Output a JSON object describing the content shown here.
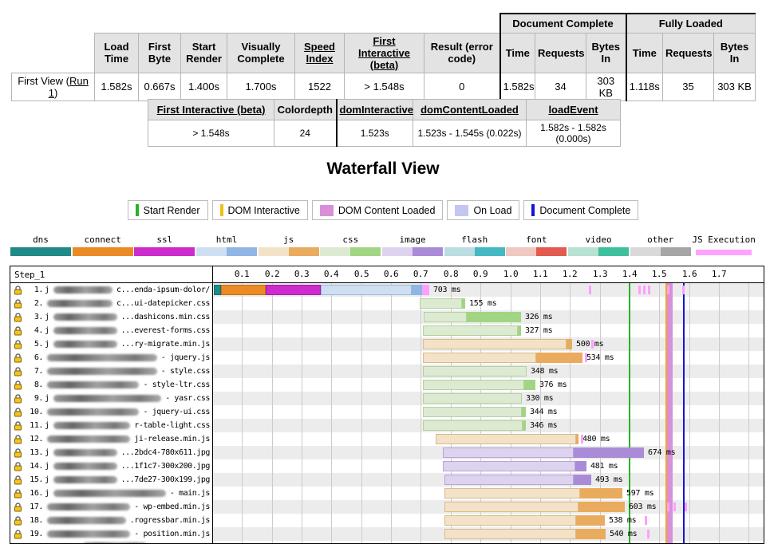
{
  "summary_table": {
    "row_label": {
      "prefix": "First View (",
      "link": "Run 1",
      "suffix": ")"
    },
    "col_headers": [
      "Load Time",
      "First Byte",
      "Start Render",
      "Visually Complete",
      "Speed Index",
      "First Interactive (beta)",
      "Result (error code)"
    ],
    "group_headers": [
      "Document Complete",
      "Fully Loaded"
    ],
    "sub_headers": [
      "Time",
      "Requests",
      "Bytes In",
      "Time",
      "Requests",
      "Bytes In"
    ],
    "values": [
      "1.582s",
      "0.667s",
      "1.400s",
      "1.700s",
      "1522",
      "> 1.548s",
      "0",
      "1.582s",
      "34",
      "303 KB",
      "1.118s",
      "35",
      "303 KB"
    ]
  },
  "detail_table": {
    "headers": [
      "First Interactive (beta)",
      "Colordepth",
      "domInteractive",
      "domContentLoaded",
      "loadEvent"
    ],
    "values": [
      "> 1.548s",
      "24",
      "1.523s",
      "1.523s - 1.545s (0.022s)",
      "1.582s - 1.582s (0.000s)"
    ]
  },
  "waterfall_title": "Waterfall View",
  "event_legend": [
    {
      "label": "Start Render",
      "marker": "line",
      "color": "#28b228"
    },
    {
      "label": "DOM Interactive",
      "marker": "line",
      "color": "#f0c019"
    },
    {
      "label": "DOM Content Loaded",
      "marker": "band",
      "color": "#d88fd8"
    },
    {
      "label": "On Load",
      "marker": "band",
      "color": "#c4c6f1"
    },
    {
      "label": "Document Complete",
      "marker": "line",
      "color": "#1515d6"
    }
  ],
  "phase_legend": [
    {
      "label": "dns",
      "light": "#1f8a88",
      "dark": "#14706e",
      "solid": true
    },
    {
      "label": "connect",
      "light": "#ea8b26",
      "dark": "#c96f10",
      "solid": true
    },
    {
      "label": "ssl",
      "light": "#cd2ccd",
      "dark": "#a91ba9",
      "solid": true
    },
    {
      "label": "html",
      "light": "#cfdff2",
      "dark": "#8fb6e4"
    },
    {
      "label": "js",
      "light": "#f3e2c7",
      "dark": "#e9ab5d"
    },
    {
      "label": "css",
      "light": "#dcead2",
      "dark": "#a2d583"
    },
    {
      "label": "image",
      "light": "#ded3ee",
      "dark": "#a98bd8"
    },
    {
      "label": "flash",
      "light": "#b9dde0",
      "dark": "#44b9c4"
    },
    {
      "label": "font",
      "light": "#f1c7c1",
      "dark": "#e25b4e"
    },
    {
      "label": "video",
      "light": "#b7e1d3",
      "dark": "#3fc09c"
    },
    {
      "label": "other",
      "light": "#d9d9d9",
      "dark": "#a6a6a6"
    },
    {
      "label": "JS Execution",
      "light": "#ffa2ff",
      "dark": "#ffa2ff",
      "solid": true,
      "thin": true
    }
  ],
  "waterfall": {
    "step_label": "Step_1",
    "axis": {
      "tick_labels": [
        "0.1",
        "0.2",
        "0.3",
        "0.4",
        "0.5",
        "0.6",
        "0.7",
        "0.8",
        "0.9",
        "1.0",
        "1.1",
        "1.2",
        "1.3",
        "1.4",
        "1.5",
        "1.6",
        "1.7"
      ],
      "grid_end": 1.8,
      "t_max": 1.85
    },
    "events": {
      "start_render": {
        "t": 1.4,
        "color": "#28b228"
      },
      "dom_interactive": {
        "t": 1.523,
        "color": "#f0a822"
      },
      "dom_content_loaded": {
        "t1": 1.523,
        "t2": 1.545,
        "color": "#d88fdc"
      },
      "on_load": {
        "t1": 1.582,
        "t2": 1.582,
        "color": "#c4c6f1"
      },
      "document_complete": {
        "t": 1.582,
        "color": "#1515d6"
      }
    },
    "colors": {
      "dns": {
        "fill": "#1f8a88",
        "border": "#14706e"
      },
      "connect": {
        "fill": "#ea8b26",
        "border": "#c96f10"
      },
      "ssl": {
        "fill": "#cd2ccd",
        "border": "#a91ba9"
      },
      "html": {
        "light": "#cfdff2",
        "border": "#9ab8dc",
        "dark": "#8fb6e4"
      },
      "js": {
        "light": "#f3e2c7",
        "border": "#d8bd8a",
        "dark": "#e9ab5d"
      },
      "css": {
        "light": "#dcead2",
        "border": "#b4d19d",
        "dark": "#a2d583"
      },
      "image": {
        "light": "#ded3ee",
        "border": "#b7a3d9",
        "dark": "#a98bd8"
      },
      "exec": {
        "fill": "#ff9fff"
      }
    },
    "requests": [
      {
        "num": "1.",
        "lead": "j",
        "tail": "c...enda-ipsum-dolor/",
        "type": "html",
        "ms": "703 ms",
        "segments": [
          [
            "dns",
            0.005,
            0.03
          ],
          [
            "connect",
            0.03,
            0.18
          ],
          [
            "ssl",
            0.18,
            0.365
          ],
          [
            "html",
            0.365,
            0.668
          ],
          [
            "html_dark",
            0.668,
            0.703
          ],
          [
            "exec",
            0.703,
            0.728
          ]
        ],
        "marks": [
          1.265,
          1.43,
          1.446,
          1.462,
          1.527,
          1.578
        ]
      },
      {
        "num": "2.",
        "lead": "",
        "tail": "c...ui-datepicker.css",
        "type": "css",
        "ms": "155 ms",
        "light": [
          0.695,
          0.838
        ],
        "dark": [
          0.838,
          0.85
        ]
      },
      {
        "num": "3.",
        "lead": "j",
        "tail": "...dashicons.min.css",
        "type": "css",
        "ms": "326 ms",
        "light": [
          0.709,
          0.855
        ],
        "dark": [
          0.855,
          1.035
        ]
      },
      {
        "num": "4.",
        "lead": "j",
        "tail": "...everest-forms.css",
        "type": "css",
        "ms": "327 ms",
        "light": [
          0.708,
          1.025
        ],
        "dark": [
          1.025,
          1.035
        ]
      },
      {
        "num": "5.",
        "lead": "j",
        "tail": "...ry-migrate.min.js",
        "type": "js",
        "ms": "500 ms",
        "light": [
          0.708,
          1.19
        ],
        "dark": [
          1.19,
          1.208
        ],
        "marks": [
          1.272
        ]
      },
      {
        "num": "6.",
        "lead": "",
        "tail": "- jquery.js",
        "type": "js",
        "ms": "534 ms",
        "light": [
          0.708,
          1.087
        ],
        "dark": [
          1.087,
          1.242
        ],
        "marks": [
          1.25
        ]
      },
      {
        "num": "7.",
        "lead": "",
        "tail": "- style.css",
        "type": "css",
        "ms": "348 ms",
        "light": [
          0.708,
          1.056
        ]
      },
      {
        "num": "8.",
        "lead": "",
        "tail": "- style-ltr.css",
        "type": "css",
        "ms": "376 ms",
        "light": [
          0.708,
          1.047
        ],
        "dark": [
          1.047,
          1.084
        ]
      },
      {
        "num": "9.",
        "lead": "j",
        "tail": "- yasr.css",
        "type": "css",
        "ms": "330 ms",
        "light": [
          0.708,
          1.038
        ]
      },
      {
        "num": "10.",
        "lead": "",
        "tail": "- jquery-ui.css",
        "type": "css",
        "ms": "344 ms",
        "light": [
          0.708,
          1.04
        ],
        "dark": [
          1.04,
          1.052
        ]
      },
      {
        "num": "11.",
        "lead": "j",
        "tail": "r-table-light.css",
        "type": "css",
        "ms": "346 ms",
        "light": [
          0.706,
          1.042
        ],
        "dark": [
          1.042,
          1.052
        ]
      },
      {
        "num": "12.",
        "lead": "",
        "tail": "ji-release.min.js",
        "type": "js",
        "ms": "480 ms",
        "light": [
          0.749,
          1.222
        ],
        "dark": [
          1.222,
          1.229
        ],
        "marks": [
          1.236
        ]
      },
      {
        "num": "13.",
        "lead": "j",
        "tail": "...2bdc4-780x611.jpg",
        "type": "image",
        "ms": "674 ms",
        "light": [
          0.775,
          1.212
        ],
        "dark": [
          1.212,
          1.449
        ]
      },
      {
        "num": "14.",
        "lead": "j",
        "tail": "...1f1c7-300x200.jpg",
        "type": "image",
        "ms": "481 ms",
        "light": [
          0.775,
          1.217
        ],
        "dark": [
          1.217,
          1.256
        ]
      },
      {
        "num": "15.",
        "lead": "j",
        "tail": "...7de27-300x199.jpg",
        "type": "image",
        "ms": "493 ms",
        "light": [
          0.778,
          1.214
        ],
        "dark": [
          1.214,
          1.271
        ]
      },
      {
        "num": "16.",
        "lead": "j",
        "tail": "- main.js",
        "type": "js",
        "ms": "597 ms",
        "light": [
          0.78,
          1.233
        ],
        "dark": [
          1.233,
          1.377
        ]
      },
      {
        "num": "17.",
        "lead": "",
        "tail": "- wp-embed.min.js",
        "type": "js",
        "ms": "603 ms",
        "light": [
          0.78,
          1.23
        ],
        "dark": [
          1.23,
          1.383
        ],
        "marks": [
          1.527,
          1.548,
          1.585
        ]
      },
      {
        "num": "18.",
        "lead": "",
        "tail": ".rogressbar.min.js",
        "type": "js",
        "ms": "538 ms",
        "light": [
          0.78,
          1.222
        ],
        "dark": [
          1.222,
          1.318
        ],
        "marks": [
          1.452
        ]
      },
      {
        "num": "19.",
        "lead": "",
        "tail": "- position.min.js",
        "type": "js",
        "ms": "540 ms",
        "light": [
          0.78,
          1.222
        ],
        "dark": [
          1.222,
          1.32
        ],
        "marks": [
          1.458
        ]
      },
      {
        "num": "",
        "lead": "",
        "tail": "",
        "type": "none",
        "ms": "",
        "partial": true
      }
    ]
  }
}
